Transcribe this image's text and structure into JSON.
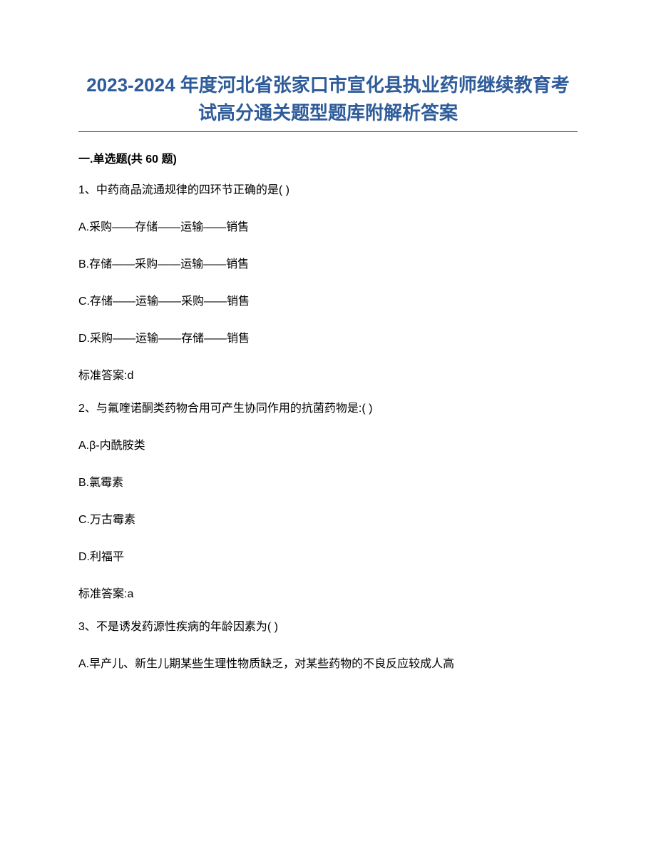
{
  "title_line1": "2023-2024 年度河北省张家口市宣化县执业药师继续教育考",
  "title_line2": "试高分通关题型题库附解析答案",
  "section_header": "一.单选题(共 60 题)",
  "title_color": "#2e5b99",
  "underline_color": "#2e5b99",
  "body_text_color": "#000000",
  "background_color": "#ffffff",
  "title_fontsize": 26,
  "body_fontsize": 16,
  "questions": [
    {
      "stem": "1、中药商品流通规律的四环节正确的是( )",
      "options": [
        "A.采购——存储——运输——销售",
        "B.存储——采购——运输——销售",
        "C.存储——运输——采购——销售",
        "D.采购——运输——存储——销售"
      ],
      "answer": "标准答案:d"
    },
    {
      "stem": "2、与氟喹诺酮类药物合用可产生协同作用的抗菌药物是:( )",
      "options": [
        "A.β-内酰胺类",
        "B.氯霉素",
        "C.万古霉素",
        "D.利福平"
      ],
      "answer": "标准答案:a"
    },
    {
      "stem": "3、不是诱发药源性疾病的年龄因素为( )",
      "options": [
        "A.早产儿、新生儿期某些生理性物质缺乏，对某些药物的不良反应较成人高"
      ],
      "answer": ""
    }
  ]
}
